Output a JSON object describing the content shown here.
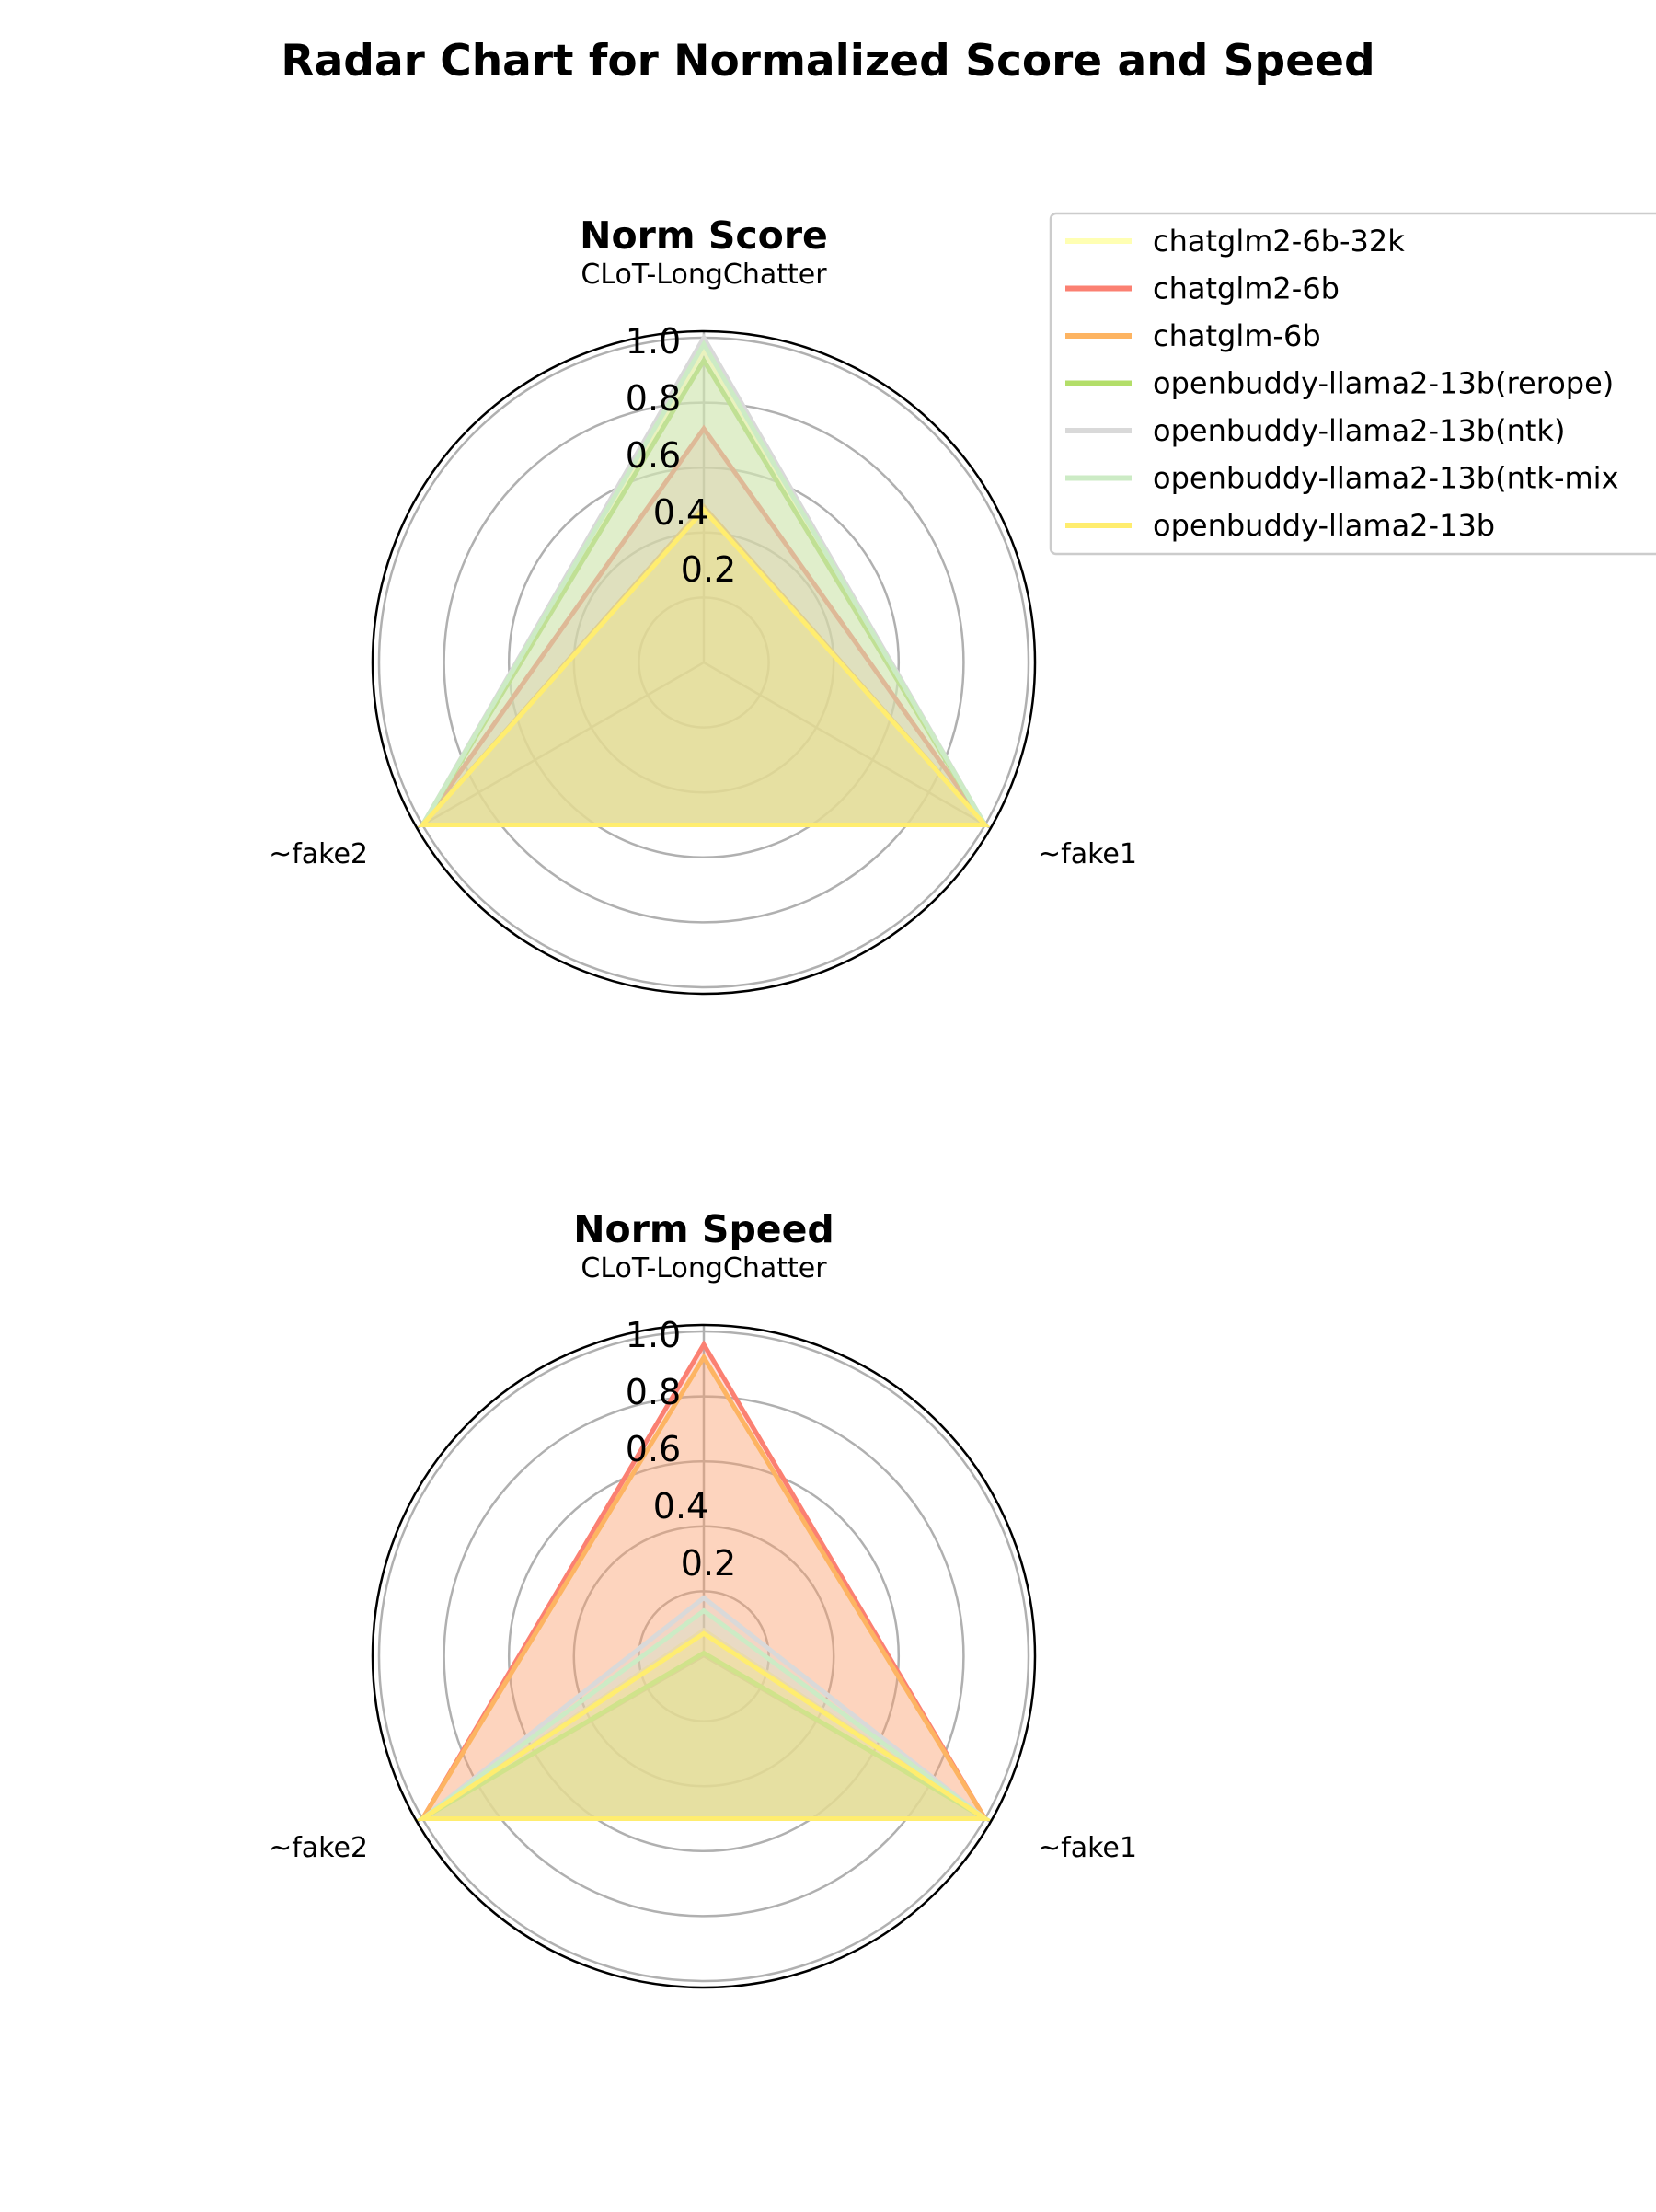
{
  "figure": {
    "title": "Radar Chart for Normalized Score and Speed"
  },
  "legend": {
    "placement": "top-right, outside first panel",
    "entries": [
      {
        "label": "chatglm2-6b-32k",
        "color": "#ffffb3"
      },
      {
        "label": "chatglm2-6b",
        "color": "#fb8072"
      },
      {
        "label": "chatglm-6b",
        "color": "#fdb462"
      },
      {
        "label": "openbuddy-llama2-13b(rerope)",
        "color": "#b3de69"
      },
      {
        "label": "openbuddy-llama2-13b(ntk)",
        "color": "#d9d9d9"
      },
      {
        "label": "openbuddy-llama2-13b(ntk-mix",
        "color": "#ccebc5"
      },
      {
        "label": "openbuddy-llama2-13b",
        "color": "#ffed6f"
      }
    ]
  },
  "chart_data": [
    {
      "type": "radar",
      "title": "Norm Score",
      "axes": [
        "CLoT-LongChatter",
        "~fake1",
        "~fake2"
      ],
      "rlim": [
        0,
        1.0
      ],
      "rticks": [
        "0.2",
        "0.4",
        "0.6",
        "0.8",
        "1.0"
      ],
      "grid": true,
      "series": [
        {
          "name": "chatglm2-6b-32k",
          "color": "#ffffb3",
          "values": [
            0.96,
            1.0,
            1.0
          ]
        },
        {
          "name": "chatglm2-6b",
          "color": "#fb8072",
          "values": [
            0.72,
            1.0,
            1.0
          ]
        },
        {
          "name": "chatglm-6b",
          "color": "#fdb462",
          "values": [
            0.48,
            1.0,
            1.0
          ]
        },
        {
          "name": "openbuddy-llama2-13b(rerope)",
          "color": "#b3de69",
          "values": [
            0.93,
            1.0,
            1.0
          ]
        },
        {
          "name": "openbuddy-llama2-13b(ntk)",
          "color": "#d9d9d9",
          "values": [
            1.0,
            1.0,
            1.0
          ]
        },
        {
          "name": "openbuddy-llama2-13b(ntk-mix",
          "color": "#ccebc5",
          "values": [
            0.98,
            1.0,
            1.0
          ]
        },
        {
          "name": "openbuddy-llama2-13b",
          "color": "#ffed6f",
          "values": [
            0.47,
            1.0,
            1.0
          ]
        }
      ]
    },
    {
      "type": "radar",
      "title": "Norm Speed",
      "axes": [
        "CLoT-LongChatter",
        "~fake1",
        "~fake2"
      ],
      "rlim": [
        0,
        1.0
      ],
      "rticks": [
        "0.2",
        "0.4",
        "0.6",
        "0.8",
        "1.0"
      ],
      "grid": true,
      "series": [
        {
          "name": "chatglm2-6b-32k",
          "color": "#ffffb3",
          "values": [
            0.08,
            1.0,
            1.0
          ]
        },
        {
          "name": "chatglm2-6b",
          "color": "#fb8072",
          "values": [
            0.96,
            1.0,
            1.0
          ]
        },
        {
          "name": "chatglm-6b",
          "color": "#fdb462",
          "values": [
            0.92,
            1.0,
            1.0
          ]
        },
        {
          "name": "openbuddy-llama2-13b(rerope)",
          "color": "#b3de69",
          "values": [
            0.01,
            1.0,
            1.0
          ]
        },
        {
          "name": "openbuddy-llama2-13b(ntk)",
          "color": "#d9d9d9",
          "values": [
            0.18,
            1.0,
            1.0
          ]
        },
        {
          "name": "openbuddy-llama2-13b(ntk-mix",
          "color": "#ccebc5",
          "values": [
            0.14,
            1.0,
            1.0
          ]
        },
        {
          "name": "openbuddy-llama2-13b",
          "color": "#ffed6f",
          "values": [
            0.07,
            1.0,
            1.0
          ]
        }
      ]
    }
  ]
}
